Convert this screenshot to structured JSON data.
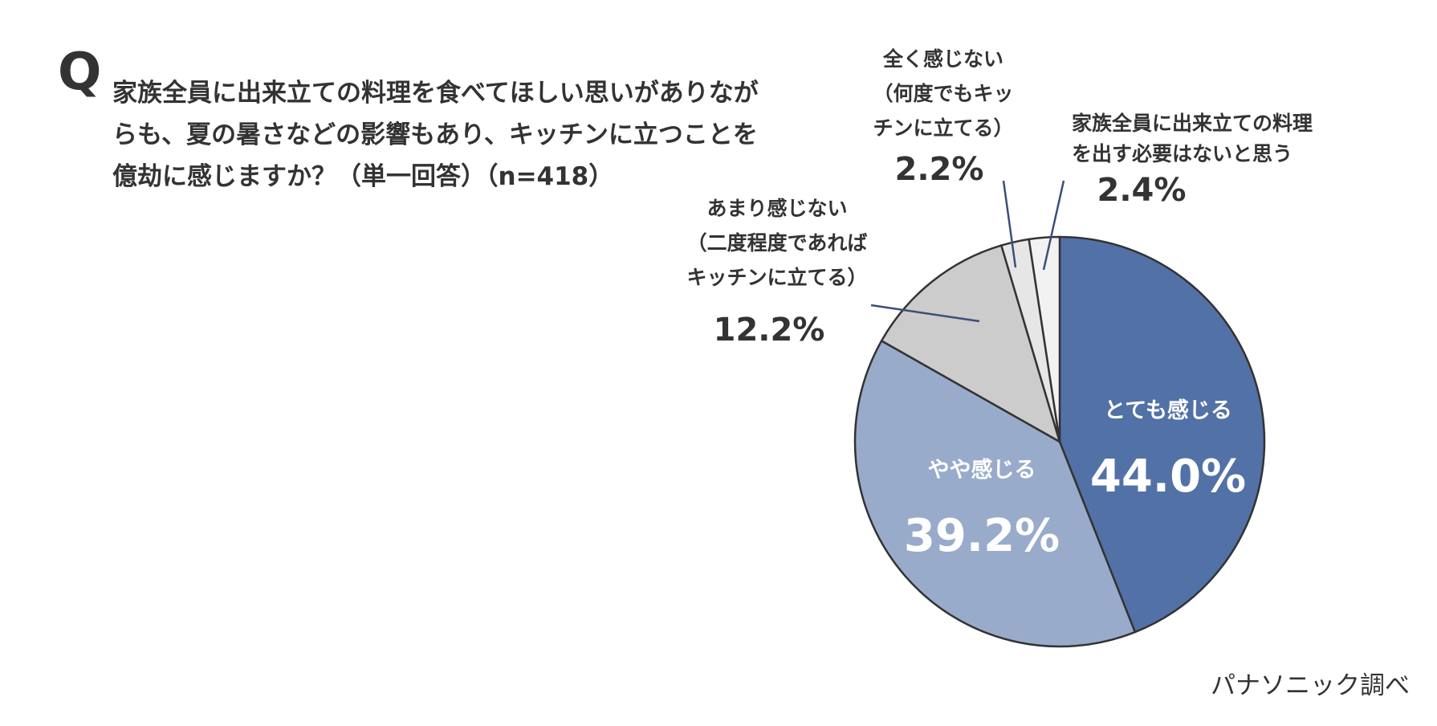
{
  "question": {
    "mark": "Q",
    "line1": "家族全員に出来立ての料理を食べてほしい思いがありなが",
    "line2": "らも、夏の暑さなどの影響もあり、キッチンに立つことを",
    "line3": "億劫に感じますか？（単一回答）（n=418）"
  },
  "source": "パナソニック調べ",
  "chart_data": {
    "type": "pie",
    "title": "",
    "start_angle_deg": 0,
    "direction": "clockwise",
    "slices": [
      {
        "label_lines": [
          "とても感じる"
        ],
        "value": 44.0,
        "value_text": "44.0%",
        "color": "#5271a7",
        "label_placement": "inside",
        "label_color": "#ffffff"
      },
      {
        "label_lines": [
          "やや感じる"
        ],
        "value": 39.2,
        "value_text": "39.2%",
        "color": "#99abca",
        "label_placement": "inside",
        "label_color": "#ffffff"
      },
      {
        "label_lines": [
          "あまり感じない",
          "（二度程度であれば",
          "キッチンに立てる）"
        ],
        "value": 12.2,
        "value_text": "12.2%",
        "color": "#cccccc",
        "label_placement": "outside",
        "label_color": "#333333"
      },
      {
        "label_lines": [
          "全く感じない",
          "（何度でもキッ",
          "チンに立てる）"
        ],
        "value": 2.2,
        "value_text": "2.2%",
        "color": "#e6e6e6",
        "label_placement": "outside",
        "label_color": "#333333"
      },
      {
        "label_lines": [
          "家族全員に出来立ての料理",
          "を出す必要はないと思う"
        ],
        "value": 2.4,
        "value_text": "2.4%",
        "color": "#f2f2f2",
        "label_placement": "outside",
        "label_color": "#333333"
      }
    ]
  }
}
